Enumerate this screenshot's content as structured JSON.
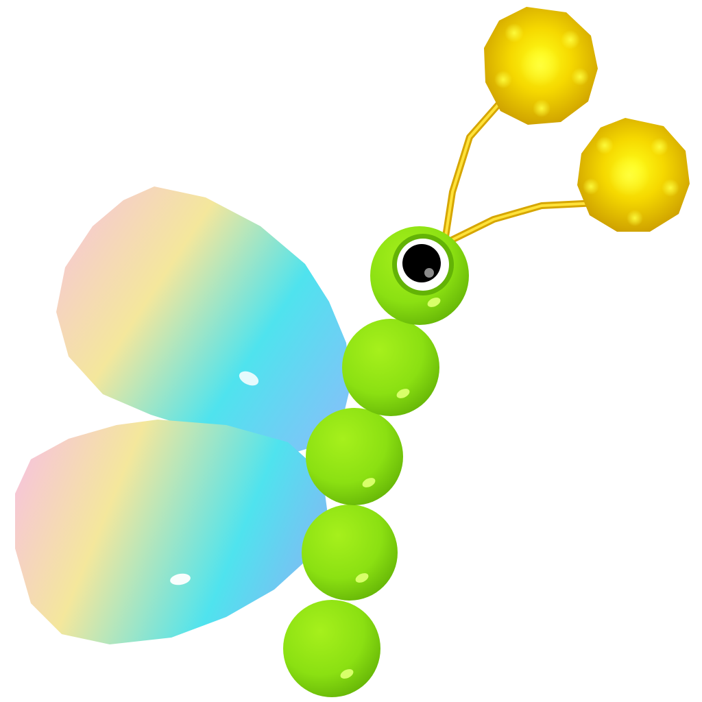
{
  "scene": {
    "subject": "butterfly-3d-render",
    "background_color": "#ffffff",
    "colors": {
      "body_green": "#8be012",
      "body_highlight": "#d8ff6a",
      "body_shadow": "#5fae06",
      "antenna_gold": "#f2c400",
      "antenna_tip_gold": "#d8a800",
      "antenna_tip_highlight": "#ffff33",
      "eye_black": "#000000",
      "eye_white": "#ffffff",
      "eye_pupil_shine": "#8a8a8a",
      "wing_pink": "#f6c7d6",
      "wing_yellow": "#f4e79c",
      "wing_cyan": "#4fe3ee",
      "wing_blue": "#7cc6f7"
    }
  }
}
